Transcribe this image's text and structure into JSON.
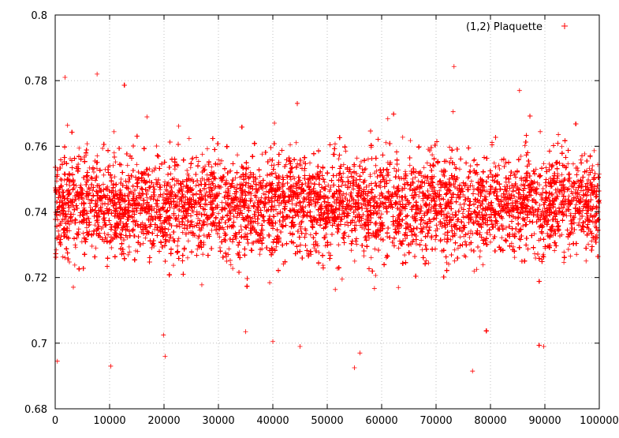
{
  "chart_data": {
    "type": "scatter",
    "title": "",
    "xlabel": "",
    "ylabel": "",
    "xlim": [
      0,
      100000
    ],
    "ylim": [
      0.68,
      0.8
    ],
    "x_ticks": [
      0,
      10000,
      20000,
      30000,
      40000,
      50000,
      60000,
      70000,
      80000,
      90000,
      100000
    ],
    "x_tick_labels": [
      "0",
      "10000",
      "20000",
      "30000",
      "40000",
      "50000",
      "60000",
      "70000",
      "80000",
      "90000",
      "100000"
    ],
    "y_ticks": [
      0.68,
      0.7,
      0.72,
      0.74,
      0.76,
      0.78,
      0.8
    ],
    "y_tick_labels": [
      "0.68",
      "0.7",
      "0.72",
      "0.74",
      "0.76",
      "0.78",
      "0.8"
    ],
    "grid": true,
    "legend_position": "top-right",
    "marker": "+",
    "series": [
      {
        "name": "(1,2) Plaquette",
        "color": "#ff0000",
        "n_points": 100000,
        "center": 0.742,
        "spread_sd": 0.0075,
        "outliers": [
          {
            "x": 400,
            "y": 0.6945
          },
          {
            "x": 1800,
            "y": 0.781
          },
          {
            "x": 7700,
            "y": 0.782
          },
          {
            "x": 10200,
            "y": 0.693
          },
          {
            "x": 19900,
            "y": 0.7025
          },
          {
            "x": 20200,
            "y": 0.696
          },
          {
            "x": 35000,
            "y": 0.7035
          },
          {
            "x": 40000,
            "y": 0.7005
          },
          {
            "x": 45000,
            "y": 0.699
          },
          {
            "x": 55000,
            "y": 0.6925
          },
          {
            "x": 56000,
            "y": 0.697
          },
          {
            "x": 73300,
            "y": 0.7843
          },
          {
            "x": 76700,
            "y": 0.6915
          },
          {
            "x": 89800,
            "y": 0.699
          }
        ]
      }
    ]
  }
}
